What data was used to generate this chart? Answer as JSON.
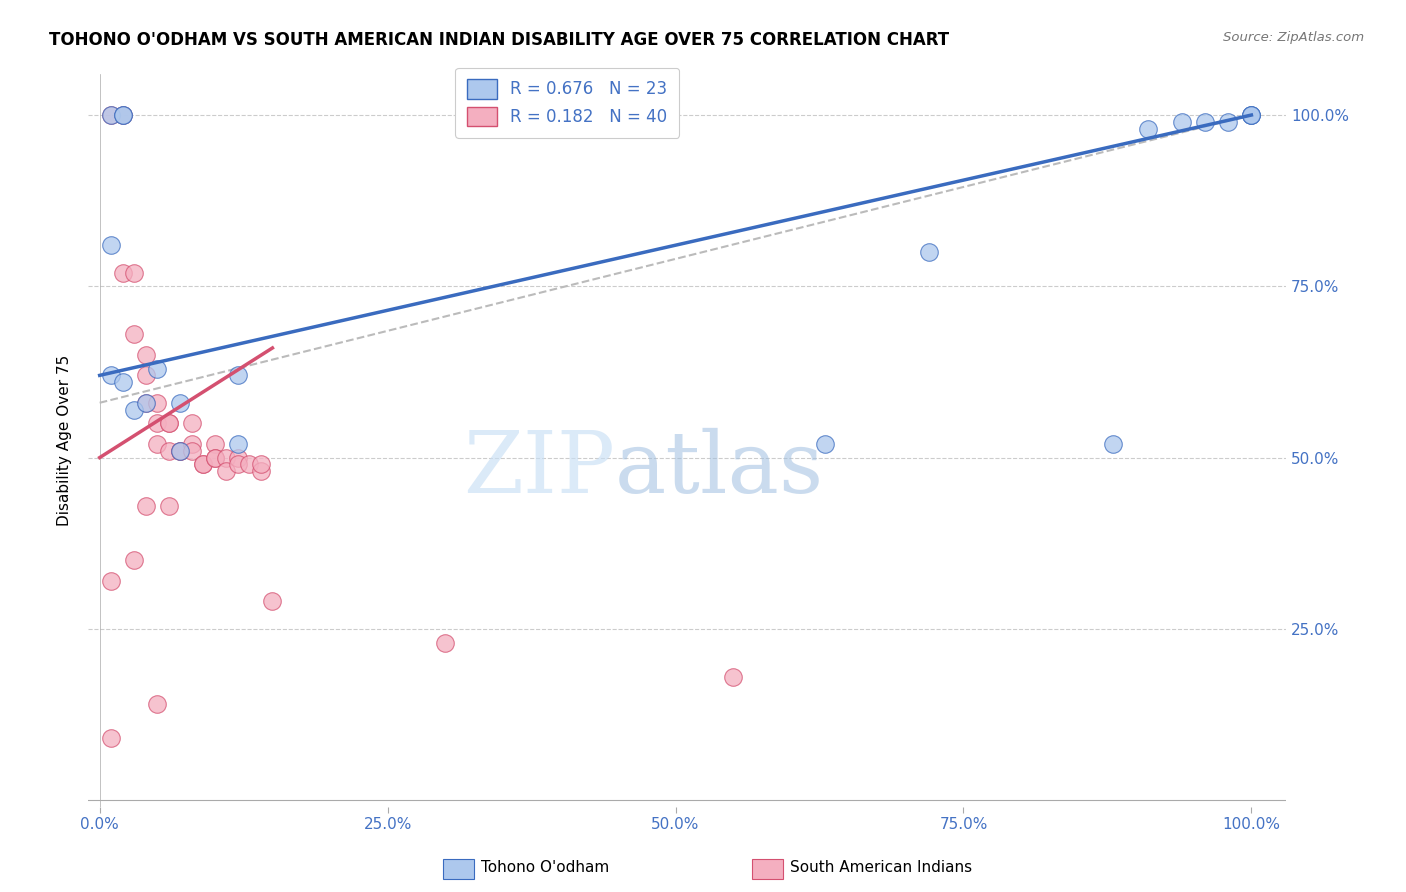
{
  "title": "TOHONO O'ODHAM VS SOUTH AMERICAN INDIAN DISABILITY AGE OVER 75 CORRELATION CHART",
  "source": "Source: ZipAtlas.com",
  "ylabel": "Disability Age Over 75",
  "legend_label_1": "Tohono O'odham",
  "legend_label_2": "South American Indians",
  "R1": 0.676,
  "N1": 23,
  "R2": 0.182,
  "N2": 40,
  "color_blue": "#adc8ed",
  "color_pink": "#f4afc0",
  "color_blue_line": "#3a6bbf",
  "color_pink_line": "#d45070",
  "color_blue_text": "#4472c4",
  "color_axis_labels": "#4472c4",
  "blue_points_x": [
    0.01,
    0.02,
    0.02,
    0.01,
    0.01,
    0.02,
    0.03,
    0.04,
    0.05,
    0.07,
    0.07,
    0.12,
    0.12,
    0.63,
    0.72,
    0.88,
    0.91,
    0.94,
    0.96,
    0.98,
    1.0,
    1.0,
    1.0
  ],
  "blue_points_y": [
    1.0,
    1.0,
    1.0,
    0.81,
    0.62,
    0.61,
    0.57,
    0.58,
    0.63,
    0.58,
    0.51,
    0.62,
    0.52,
    0.52,
    0.8,
    0.52,
    0.98,
    0.99,
    0.99,
    0.99,
    1.0,
    1.0,
    1.0
  ],
  "pink_points_x": [
    0.01,
    0.02,
    0.02,
    0.03,
    0.03,
    0.04,
    0.04,
    0.04,
    0.05,
    0.05,
    0.05,
    0.06,
    0.06,
    0.06,
    0.07,
    0.07,
    0.08,
    0.08,
    0.08,
    0.09,
    0.09,
    0.1,
    0.1,
    0.1,
    0.11,
    0.11,
    0.12,
    0.12,
    0.13,
    0.14,
    0.14,
    0.04,
    0.06,
    0.03,
    0.01,
    0.15,
    0.3,
    0.55,
    0.05,
    0.01
  ],
  "pink_points_y": [
    1.0,
    1.0,
    0.77,
    0.77,
    0.68,
    0.65,
    0.62,
    0.58,
    0.58,
    0.55,
    0.52,
    0.55,
    0.55,
    0.51,
    0.51,
    0.51,
    0.55,
    0.52,
    0.51,
    0.49,
    0.49,
    0.52,
    0.5,
    0.5,
    0.5,
    0.48,
    0.5,
    0.49,
    0.49,
    0.48,
    0.49,
    0.43,
    0.43,
    0.35,
    0.32,
    0.29,
    0.23,
    0.18,
    0.14,
    0.09
  ],
  "blue_line_x": [
    0.0,
    1.0
  ],
  "blue_line_y": [
    0.62,
    1.0
  ],
  "dash_line_x": [
    0.0,
    1.0
  ],
  "dash_line_y": [
    0.58,
    1.0
  ],
  "pink_line_x": [
    0.0,
    0.15
  ],
  "pink_line_y": [
    0.5,
    0.66
  ],
  "watermark_zip": "ZIP",
  "watermark_atlas": "atlas",
  "background_color": "#ffffff",
  "grid_color": "#cccccc",
  "xlim": [
    0.0,
    1.0
  ],
  "ylim": [
    0.0,
    1.0
  ],
  "x_ticks": [
    0.0,
    0.25,
    0.5,
    0.75,
    1.0
  ],
  "x_labels": [
    "0.0%",
    "25.0%",
    "50.0%",
    "75.0%",
    "100.0%"
  ],
  "y_ticks": [
    0.0,
    0.25,
    0.5,
    0.75,
    1.0
  ],
  "y_right_labels": [
    "",
    "25.0%",
    "50.0%",
    "75.0%",
    "100.0%"
  ]
}
